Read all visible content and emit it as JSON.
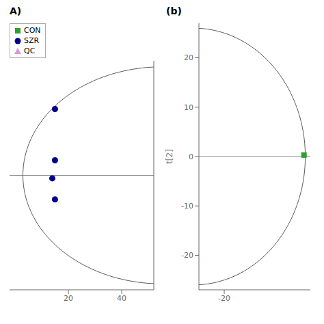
{
  "chart_data": [
    {
      "type": "scatter",
      "title": "A)",
      "xlim": [
        -2,
        52
      ],
      "ylim": [
        -38,
        38
      ],
      "xticks": [
        20,
        40
      ],
      "yticks": [],
      "tick_labels": "x",
      "legend": "upper right",
      "series": [
        {
          "name": "CON",
          "color": "#2ca02c",
          "marker": "square",
          "x": [],
          "values": []
        },
        {
          "name": "SZR",
          "color": "#00008B",
          "marker": "circle",
          "x": [
            15,
            15,
            14,
            15
          ],
          "values": [
            22,
            5,
            -1,
            -8
          ]
        },
        {
          "name": "QC",
          "color": "#d899d8",
          "marker": "triangle",
          "x": [],
          "values": []
        }
      ],
      "hline": {
        "y": 0,
        "color": "#888888"
      },
      "ellipse": {
        "cx": 55,
        "cy": 0,
        "rx": 52,
        "ry": 36,
        "color": "#555555"
      }
    },
    {
      "type": "scatter",
      "title": "(b)",
      "ylabel": "t[2]",
      "xlim": [
        -30,
        14
      ],
      "ylim": [
        -27,
        27
      ],
      "xticks": [
        -20
      ],
      "yticks": [
        -20,
        -10,
        0,
        10,
        20
      ],
      "series": [
        {
          "name": "CON",
          "color": "#2ca02c",
          "marker": "square",
          "x": [
            11.5
          ],
          "values": [
            0.3
          ]
        }
      ],
      "hline": {
        "y": 0,
        "color": "#888888"
      },
      "ellipse": {
        "cx": -32,
        "cy": 0,
        "rx": 44,
        "ry": 26,
        "color": "#555555"
      }
    }
  ]
}
